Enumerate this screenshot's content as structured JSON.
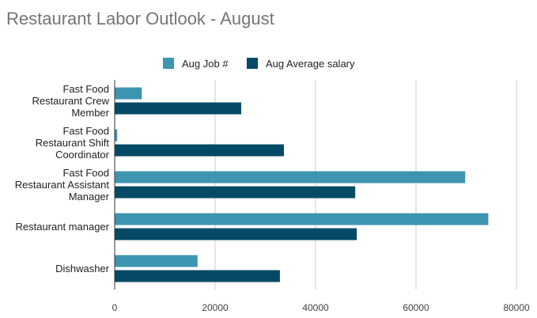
{
  "chart_data": {
    "type": "bar",
    "orientation": "horizontal",
    "title": "Restaurant Labor Outlook - August",
    "categories": [
      "Fast Food Restaurant Crew Member",
      "Fast Food Restaurant Shift Coordinator",
      "Fast Food Restaurant Assistant Manager",
      "Restaurant manager",
      "Dishwasher"
    ],
    "category_label_lines": [
      [
        "Fast Food",
        "Restaurant Crew",
        "Member"
      ],
      [
        "Fast Food",
        "Restaurant Shift",
        "Coordinator"
      ],
      [
        "Fast Food",
        "Restaurant Assistant",
        "Manager"
      ],
      [
        "Restaurant manager"
      ],
      [
        "Dishwasher"
      ]
    ],
    "series": [
      {
        "name": "Aug Job #",
        "color": "#3e95b0",
        "values": [
          5400,
          500,
          69800,
          74400,
          16500
        ]
      },
      {
        "name": "Aug Average salary",
        "color": "#054a64",
        "values": [
          25200,
          33700,
          47900,
          48200,
          32900
        ]
      }
    ],
    "xlim": [
      0,
      80000
    ],
    "xticks": [
      0,
      20000,
      40000,
      60000,
      80000
    ],
    "grid": true,
    "legend_position": "top"
  }
}
